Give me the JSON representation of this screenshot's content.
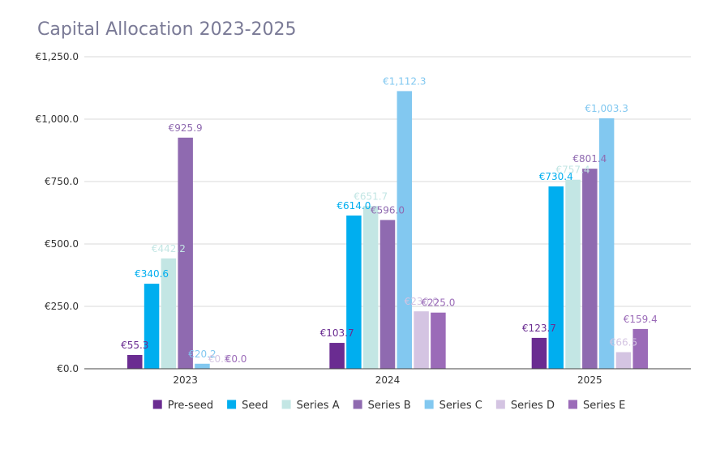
{
  "chart_data": {
    "type": "bar",
    "title": "Capital Allocation 2023-2025",
    "xlabel": "",
    "ylabel": "",
    "ylim": [
      0,
      1250
    ],
    "yticks": [
      0,
      250,
      500,
      750,
      1000,
      1250
    ],
    "ytick_labels": [
      "€0.0",
      "€250.0",
      "€500.0",
      "€750.0",
      "€1,000.0",
      "€1,250.0"
    ],
    "categories": [
      "2023",
      "2024",
      "2025"
    ],
    "grid": true,
    "legend_position": "bottom",
    "series": [
      {
        "name": "Pre-seed",
        "color": "#6a2c91",
        "values": [
          55.3,
          103.7,
          123.7
        ],
        "labels": [
          "€55.3",
          "€103.7",
          "€123.7"
        ]
      },
      {
        "name": "Seed",
        "color": "#00aeef",
        "values": [
          340.6,
          614.0,
          730.4
        ],
        "labels": [
          "€340.6",
          "€614.0",
          "€730.4"
        ]
      },
      {
        "name": "Series A",
        "color": "#c3e6e4",
        "values": [
          442.2,
          651.7,
          757.4
        ],
        "labels": [
          "€442.2",
          "€651.7",
          "€757.4"
        ]
      },
      {
        "name": "Series B",
        "color": "#8f6ab0",
        "values": [
          925.9,
          596.0,
          801.4
        ],
        "labels": [
          "€925.9",
          "€596.0",
          "€801.4"
        ]
      },
      {
        "name": "Series C",
        "color": "#82c8f0",
        "values": [
          20.2,
          1112.3,
          1003.3
        ],
        "labels": [
          "€20.2",
          "€1,112.3",
          "€1,003.3"
        ]
      },
      {
        "name": "Series D",
        "color": "#d4c4e2",
        "values": [
          0.8,
          230.0,
          66.5
        ],
        "labels": [
          "€0.8",
          "€230.0",
          "€66.5"
        ]
      },
      {
        "name": "Series E",
        "color": "#9b6bb8",
        "values": [
          0.0,
          225.0,
          159.4
        ],
        "labels": [
          "€0.0",
          "€225.0",
          "€159.4"
        ]
      }
    ]
  }
}
